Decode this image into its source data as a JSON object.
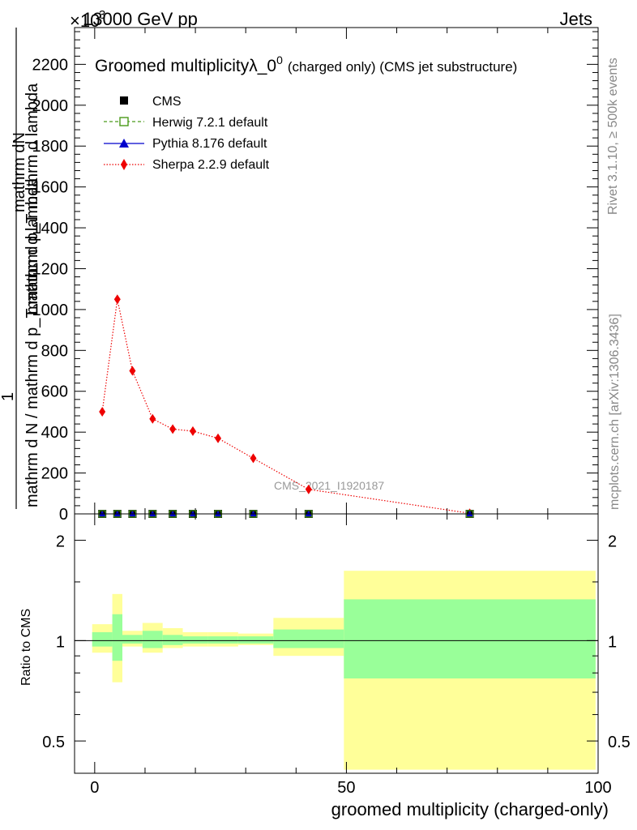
{
  "header": {
    "left": "13000 GeV pp",
    "right": "Jets",
    "exponent": "×10",
    "exponent_power": "3"
  },
  "side_text": {
    "rivet": "Rivet 3.1.10, ≥ 500k events",
    "mcplots": "mcplots.cern.ch [arXiv:1306.3436]"
  },
  "watermark": "CMS_2021_I1920187",
  "colors": {
    "herwig": "#4a9a1a",
    "pythia": "#0000cc",
    "sherpa": "#ee0000",
    "band_inner": "#99ff99",
    "band_outer": "#ffff99"
  },
  "chart_data": [
    {
      "type": "line",
      "title_main": "Groomed multiplicityλ_0",
      "title_sup": "0",
      "title_rest": "(charged only) (CMS jet substructure)",
      "ylabel_parts": [
        "mathrm d",
        "N",
        "1",
        "mathrm d N / mathrm d p",
        "T",
        " mathrm d p",
        "T",
        " mathrm d lambda"
      ],
      "ylabel_top": "mathrm dN",
      "ylabel_mid": "mathrm d p_T mathrm d lambda",
      "ylabel_one": "1",
      "ylabel_bottom": "mathrm d N / mathrm d p_T mathrm d lambda",
      "ylim": [
        0,
        2380
      ],
      "xlim": [
        -4,
        100
      ],
      "yticks": [
        0,
        200,
        400,
        600,
        800,
        1000,
        1200,
        1400,
        1600,
        1800,
        2000,
        2200
      ],
      "ytick_labels": [
        "0",
        "200",
        "400",
        "600",
        "800",
        "1000",
        "1200",
        "1400",
        "1600",
        "1800",
        "2000",
        "2200"
      ],
      "legend_position": "top-left",
      "legend": [
        {
          "key": "cms",
          "label": "CMS"
        },
        {
          "key": "herwig",
          "label": "Herwig 7.2.1 default"
        },
        {
          "key": "pythia",
          "label": "Pythia 8.176 default"
        },
        {
          "key": "sherpa",
          "label": "Sherpa 2.2.9 default"
        }
      ],
      "x": [
        1.5,
        4.5,
        7.5,
        11.5,
        15.5,
        19.5,
        24.5,
        31.5,
        42.5,
        74.5
      ],
      "series": [
        {
          "name": "CMS",
          "values": [
            0,
            0,
            0,
            0,
            0,
            0,
            0,
            0,
            0,
            0
          ]
        },
        {
          "name": "Herwig 7.2.1 default",
          "values": [
            0,
            0,
            0,
            0,
            0,
            0,
            0,
            0,
            0,
            0
          ]
        },
        {
          "name": "Pythia 8.176 default",
          "values": [
            0,
            0,
            0,
            0,
            0,
            0,
            0,
            0,
            0,
            0
          ]
        },
        {
          "name": "Sherpa 2.2.9 default",
          "values": [
            500,
            1050,
            700,
            465,
            415,
            405,
            370,
            272,
            120,
            3
          ]
        }
      ]
    },
    {
      "type": "area",
      "ylabel": "Ratio to CMS",
      "xlabel": "groomed multiplicity (charged-only)",
      "xlim": [
        -4,
        100
      ],
      "ylim": [
        0.4,
        2.4
      ],
      "log_y": true,
      "xticks": [
        0,
        50,
        100
      ],
      "xtick_labels": [
        "0",
        "50",
        "100"
      ],
      "yticks": [
        0.5,
        1,
        2
      ],
      "ytick_labels": [
        "0.5",
        "1",
        "2"
      ],
      "bins": [
        {
          "lo": -0.5,
          "hi": 3.5,
          "inner": [
            0.96,
            1.06
          ],
          "outer": [
            0.92,
            1.12
          ]
        },
        {
          "lo": 3.5,
          "hi": 5.5,
          "inner": [
            0.87,
            1.2
          ],
          "outer": [
            0.75,
            1.38
          ]
        },
        {
          "lo": 5.5,
          "hi": 9.5,
          "inner": [
            0.98,
            1.04
          ],
          "outer": [
            0.96,
            1.07
          ]
        },
        {
          "lo": 9.5,
          "hi": 13.5,
          "inner": [
            0.95,
            1.07
          ],
          "outer": [
            0.92,
            1.13
          ]
        },
        {
          "lo": 13.5,
          "hi": 17.5,
          "inner": [
            0.97,
            1.04
          ],
          "outer": [
            0.95,
            1.09
          ]
        },
        {
          "lo": 17.5,
          "hi": 22.5,
          "inner": [
            0.98,
            1.03
          ],
          "outer": [
            0.96,
            1.06
          ]
        },
        {
          "lo": 22.5,
          "hi": 28.5,
          "inner": [
            0.98,
            1.03
          ],
          "outer": [
            0.96,
            1.06
          ]
        },
        {
          "lo": 28.5,
          "hi": 35.5,
          "inner": [
            0.98,
            1.03
          ],
          "outer": [
            0.97,
            1.05
          ]
        },
        {
          "lo": 35.5,
          "hi": 49.5,
          "inner": [
            0.95,
            1.08
          ],
          "outer": [
            0.9,
            1.17
          ]
        },
        {
          "lo": 49.5,
          "hi": 99.5,
          "inner": [
            0.77,
            1.33
          ],
          "outer": [
            0.41,
            1.62
          ]
        }
      ]
    }
  ]
}
